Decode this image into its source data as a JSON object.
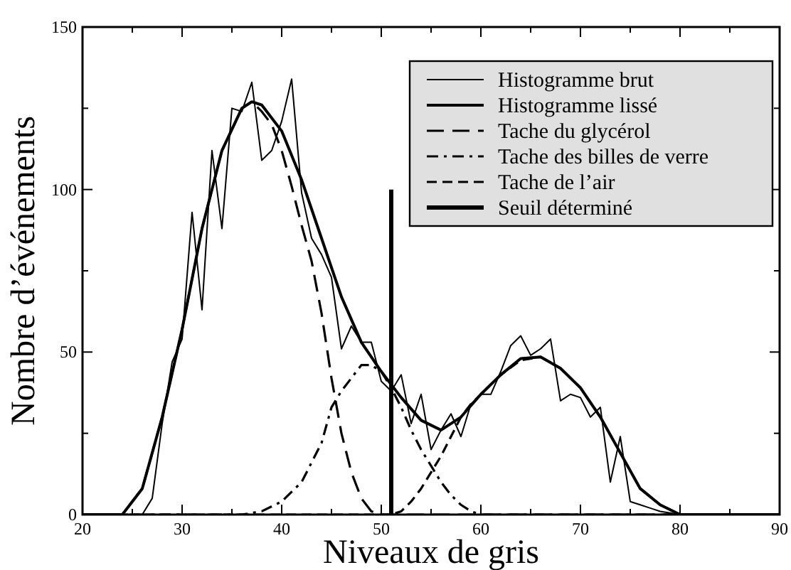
{
  "chart_data": {
    "type": "line",
    "xlabel": "Niveaux de gris",
    "ylabel": "Nombre d’événements",
    "xlim": [
      20,
      90
    ],
    "ylim": [
      0,
      150
    ],
    "xticks": [
      20,
      {
        "value": 25,
        "label": null
      },
      30,
      {
        "value": 35,
        "label": null
      },
      40,
      {
        "value": 45,
        "label": null
      },
      50,
      {
        "value": 55,
        "label": null
      },
      60,
      {
        "value": 65,
        "label": null
      },
      70,
      {
        "value": 75,
        "label": null
      },
      80,
      {
        "value": 85,
        "label": null
      },
      90
    ],
    "yticks": [
      0,
      {
        "value": 25,
        "label": null
      },
      50,
      {
        "value": 75,
        "label": null
      },
      100,
      {
        "value": 125,
        "label": null
      },
      150
    ],
    "legend": "top right",
    "grid": false,
    "marker": "none",
    "series": [
      {
        "name": "Histogramme brut",
        "color": "#000000",
        "line_style": "solid",
        "x": [
          20,
          26,
          27,
          28,
          29,
          30,
          31,
          32,
          33,
          34,
          35,
          36,
          37,
          38,
          39,
          40,
          41,
          42,
          43,
          44,
          45,
          46,
          47,
          48,
          49,
          50,
          51,
          52,
          53,
          54,
          55,
          56,
          57,
          58,
          59,
          60,
          61,
          62,
          63,
          64,
          65,
          66,
          67,
          68,
          69,
          70,
          71,
          72,
          73,
          74,
          75,
          76,
          77,
          78,
          79,
          80,
          90
        ],
        "values": [
          0,
          0,
          5,
          28,
          47,
          54,
          93,
          63,
          112,
          88,
          125,
          124,
          133,
          109,
          112,
          121,
          134,
          99,
          85,
          80,
          73,
          51,
          58,
          53,
          53,
          41,
          38,
          43,
          28,
          37,
          20,
          26,
          31,
          24,
          34,
          37,
          37,
          44,
          52,
          55,
          49,
          51,
          54,
          35,
          37,
          36,
          30,
          33,
          10,
          24,
          4,
          3,
          2,
          1,
          0.5,
          0,
          0
        ]
      },
      {
        "name": "Histogramme lissé",
        "color": "#000000",
        "line_style": "solid",
        "x": [
          20,
          24,
          26,
          28,
          30,
          32,
          34,
          36,
          37,
          38,
          40,
          42,
          44,
          46,
          48,
          50,
          52,
          54,
          56,
          58,
          60,
          62,
          64,
          66,
          68,
          70,
          72,
          74,
          76,
          78,
          80,
          90
        ],
        "values": [
          0,
          0,
          8,
          30,
          57,
          88,
          112,
          125,
          127,
          126,
          118,
          103,
          85,
          67,
          53,
          44,
          36,
          29,
          26,
          30,
          37,
          43,
          48,
          48.5,
          45,
          39,
          30,
          19,
          8,
          3,
          0,
          0
        ]
      },
      {
        "name": "Tache du glycérol",
        "color": "#000000",
        "line_style": "dashed",
        "x": [
          20,
          24,
          26,
          28,
          30,
          32,
          34,
          36,
          37,
          38,
          39,
          40,
          41,
          42,
          43,
          44,
          45,
          46,
          47,
          48,
          49,
          50,
          90
        ],
        "values": [
          0,
          0,
          8,
          30,
          57,
          88,
          112,
          125,
          127,
          124,
          120,
          112,
          101,
          89,
          78,
          62,
          42,
          25,
          13,
          5,
          1,
          0,
          0
        ]
      },
      {
        "name": "Tache des billes de verre",
        "color": "#000000",
        "line_style": "dashdot",
        "x": [
          20,
          36,
          38,
          40,
          42,
          44,
          45,
          46,
          48,
          49,
          50,
          51,
          52,
          53,
          54,
          55,
          56,
          57,
          58,
          59,
          60,
          90
        ],
        "values": [
          0,
          0,
          1,
          4,
          10,
          22,
          33,
          38,
          46,
          46,
          44,
          39,
          33,
          26,
          20,
          15,
          10,
          6,
          3,
          1,
          0,
          0
        ]
      },
      {
        "name": "Tache de l’air",
        "color": "#000000",
        "line_style": "dashed2",
        "x": [
          20,
          51,
          52,
          53,
          54,
          55,
          56,
          57,
          58,
          59,
          60,
          62,
          64,
          66,
          68,
          70,
          72,
          74,
          76,
          78,
          80,
          90
        ],
        "values": [
          0,
          0,
          1,
          4,
          8,
          13,
          18,
          24,
          30,
          34,
          37,
          43,
          47.5,
          48.5,
          45,
          39,
          30,
          19,
          8,
          3,
          0,
          0
        ]
      },
      {
        "name": "Seuil déterminé",
        "color": "#000000",
        "line_style": "solid",
        "x": [
          51,
          51
        ],
        "values": [
          0,
          100
        ]
      }
    ]
  }
}
